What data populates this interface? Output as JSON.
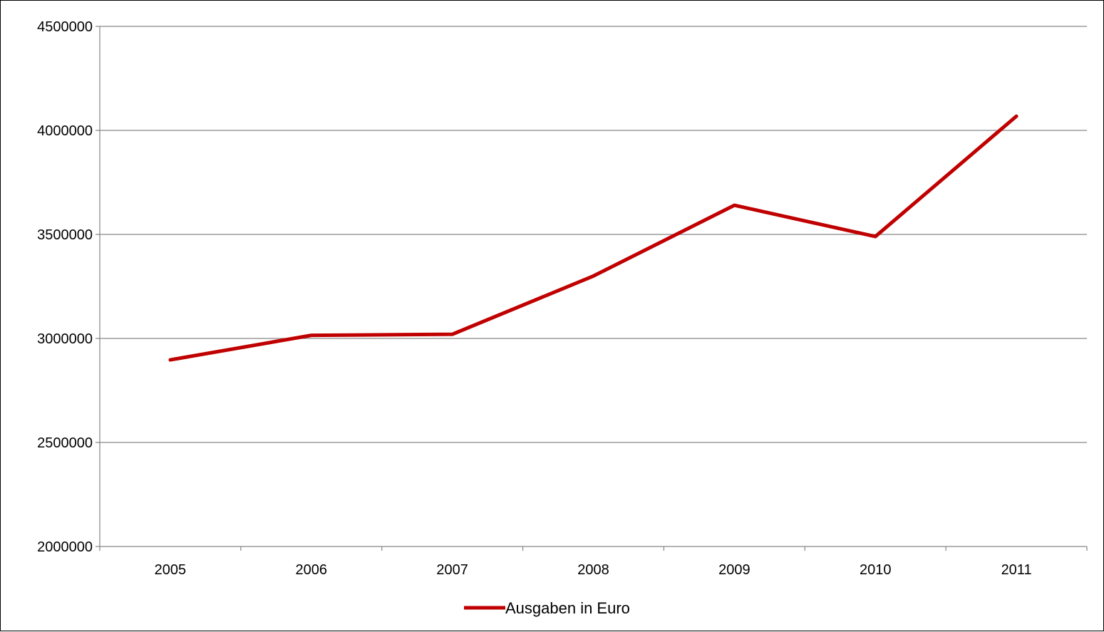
{
  "chart_data": {
    "type": "line",
    "title": "",
    "xlabel": "",
    "ylabel": "",
    "categories": [
      "2005",
      "2006",
      "2007",
      "2008",
      "2009",
      "2010",
      "2011"
    ],
    "series": [
      {
        "name": "Ausgaben in Euro",
        "values": [
          2897000,
          3015000,
          3020000,
          3300000,
          3640000,
          3490000,
          4068000
        ],
        "color": "#C00000"
      }
    ],
    "ylim": [
      2000000,
      4500000
    ],
    "yticks": [
      "2000000",
      "2500000",
      "3000000",
      "3500000",
      "4000000",
      "4500000"
    ],
    "grid": true,
    "legend_position": "bottom-center",
    "colors": {
      "gridline": "#868686",
      "axis": "#868686",
      "line": "#C00000"
    }
  }
}
